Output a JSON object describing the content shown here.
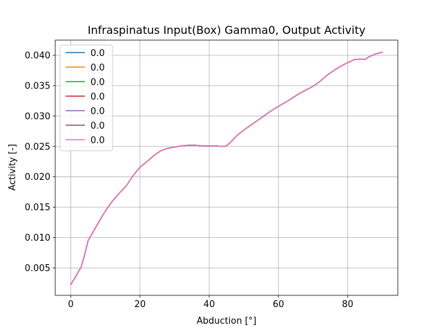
{
  "chart_data": {
    "type": "line",
    "title": "Infraspinatus Input(Box) Gamma0, Output Activity",
    "xlabel": "Abduction [°]",
    "ylabel": "Activity [-]",
    "xlim": [
      -4.5,
      94.5
    ],
    "ylim": [
      0.0005,
      0.0425
    ],
    "xticks": [
      0,
      20,
      40,
      60,
      80
    ],
    "xtick_labels": [
      "0",
      "20",
      "40",
      "60",
      "80"
    ],
    "yticks": [
      0.005,
      0.01,
      0.015,
      0.02,
      0.025,
      0.03,
      0.035,
      0.04
    ],
    "ytick_labels": [
      "0.005",
      "0.010",
      "0.015",
      "0.020",
      "0.025",
      "0.030",
      "0.035",
      "0.040"
    ],
    "grid": true,
    "legend_placement": "upper-left",
    "x": [
      0,
      1,
      2,
      3,
      4,
      5,
      6,
      8,
      10,
      12,
      14,
      16,
      18,
      20,
      22,
      24,
      26,
      28,
      30,
      32,
      34,
      36,
      38,
      40,
      42,
      44,
      45,
      46,
      48,
      50,
      52,
      55,
      58,
      60,
      63,
      66,
      68,
      70,
      72,
      74,
      76,
      78,
      80,
      82,
      84,
      85,
      86,
      88,
      90
    ],
    "series": [
      {
        "name": "0.0",
        "color": "#1f77b4",
        "values": [
          0.0023,
          0.0032,
          0.0042,
          0.0052,
          0.0072,
          0.0095,
          0.0105,
          0.0125,
          0.0144,
          0.016,
          0.0173,
          0.0185,
          0.0202,
          0.0216,
          0.0225,
          0.0235,
          0.0243,
          0.0247,
          0.0249,
          0.0251,
          0.0252,
          0.0252,
          0.0251,
          0.0251,
          0.0251,
          0.025,
          0.0251,
          0.0256,
          0.0268,
          0.0277,
          0.0285,
          0.0297,
          0.0309,
          0.0316,
          0.0326,
          0.0337,
          0.0343,
          0.0349,
          0.0357,
          0.0367,
          0.0375,
          0.0382,
          0.0388,
          0.0393,
          0.0394,
          0.0393,
          0.0397,
          0.0402,
          0.0405
        ]
      },
      {
        "name": "0.0",
        "color": "#ff7f0e",
        "values": [
          0.0023,
          0.0032,
          0.0042,
          0.0052,
          0.0072,
          0.0095,
          0.0105,
          0.0125,
          0.0144,
          0.016,
          0.0173,
          0.0185,
          0.0202,
          0.0216,
          0.0225,
          0.0235,
          0.0243,
          0.0247,
          0.0249,
          0.0251,
          0.0252,
          0.0252,
          0.0251,
          0.0251,
          0.0251,
          0.025,
          0.0251,
          0.0256,
          0.0268,
          0.0277,
          0.0285,
          0.0297,
          0.0309,
          0.0316,
          0.0326,
          0.0337,
          0.0343,
          0.0349,
          0.0357,
          0.0367,
          0.0375,
          0.0382,
          0.0388,
          0.0393,
          0.0394,
          0.0393,
          0.0397,
          0.0402,
          0.0405
        ]
      },
      {
        "name": "0.0",
        "color": "#2ca02c",
        "values": [
          0.0023,
          0.0032,
          0.0042,
          0.0052,
          0.0072,
          0.0095,
          0.0105,
          0.0125,
          0.0144,
          0.016,
          0.0173,
          0.0185,
          0.0202,
          0.0216,
          0.0225,
          0.0235,
          0.0243,
          0.0247,
          0.0249,
          0.0251,
          0.0252,
          0.0252,
          0.0251,
          0.0251,
          0.0251,
          0.025,
          0.0251,
          0.0256,
          0.0268,
          0.0277,
          0.0285,
          0.0297,
          0.0309,
          0.0316,
          0.0326,
          0.0337,
          0.0343,
          0.0349,
          0.0357,
          0.0367,
          0.0375,
          0.0382,
          0.0388,
          0.0393,
          0.0394,
          0.0393,
          0.0397,
          0.0402,
          0.0405
        ]
      },
      {
        "name": "0.0",
        "color": "#d62728",
        "values": [
          0.0023,
          0.0032,
          0.0042,
          0.0052,
          0.0072,
          0.0095,
          0.0105,
          0.0125,
          0.0144,
          0.016,
          0.0173,
          0.0185,
          0.0202,
          0.0216,
          0.0225,
          0.0235,
          0.0243,
          0.0247,
          0.0249,
          0.0251,
          0.0252,
          0.0252,
          0.0251,
          0.0251,
          0.0251,
          0.025,
          0.0251,
          0.0256,
          0.0268,
          0.0277,
          0.0285,
          0.0297,
          0.0309,
          0.0316,
          0.0326,
          0.0337,
          0.0343,
          0.0349,
          0.0357,
          0.0367,
          0.0375,
          0.0382,
          0.0388,
          0.0393,
          0.0394,
          0.0393,
          0.0397,
          0.0402,
          0.0405
        ]
      },
      {
        "name": "0.0",
        "color": "#9467bd",
        "values": [
          0.0023,
          0.0032,
          0.0042,
          0.0052,
          0.0072,
          0.0095,
          0.0105,
          0.0125,
          0.0144,
          0.016,
          0.0173,
          0.0185,
          0.0202,
          0.0216,
          0.0225,
          0.0235,
          0.0243,
          0.0247,
          0.0249,
          0.0251,
          0.0252,
          0.0252,
          0.0251,
          0.0251,
          0.0251,
          0.025,
          0.0251,
          0.0256,
          0.0268,
          0.0277,
          0.0285,
          0.0297,
          0.0309,
          0.0316,
          0.0326,
          0.0337,
          0.0343,
          0.0349,
          0.0357,
          0.0367,
          0.0375,
          0.0382,
          0.0388,
          0.0393,
          0.0394,
          0.0393,
          0.0397,
          0.0402,
          0.0405
        ]
      },
      {
        "name": "0.0",
        "color": "#8c564b",
        "values": [
          0.0023,
          0.0032,
          0.0042,
          0.0052,
          0.0072,
          0.0095,
          0.0105,
          0.0125,
          0.0144,
          0.016,
          0.0173,
          0.0185,
          0.0202,
          0.0216,
          0.0225,
          0.0235,
          0.0243,
          0.0247,
          0.0249,
          0.0251,
          0.0252,
          0.0252,
          0.0251,
          0.0251,
          0.0251,
          0.025,
          0.0251,
          0.0256,
          0.0268,
          0.0277,
          0.0285,
          0.0297,
          0.0309,
          0.0316,
          0.0326,
          0.0337,
          0.0343,
          0.0349,
          0.0357,
          0.0367,
          0.0375,
          0.0382,
          0.0388,
          0.0393,
          0.0394,
          0.0393,
          0.0397,
          0.0402,
          0.0405
        ]
      },
      {
        "name": "0.0",
        "color": "#e377c2",
        "values": [
          0.0023,
          0.0032,
          0.0042,
          0.0052,
          0.0072,
          0.0095,
          0.0105,
          0.0125,
          0.0144,
          0.016,
          0.0173,
          0.0185,
          0.0202,
          0.0216,
          0.0225,
          0.0235,
          0.0243,
          0.0247,
          0.0249,
          0.0251,
          0.0252,
          0.0252,
          0.0251,
          0.0251,
          0.0251,
          0.025,
          0.0251,
          0.0256,
          0.0268,
          0.0277,
          0.0285,
          0.0297,
          0.0309,
          0.0316,
          0.0326,
          0.0337,
          0.0343,
          0.0349,
          0.0357,
          0.0367,
          0.0375,
          0.0382,
          0.0388,
          0.0393,
          0.0394,
          0.0393,
          0.0397,
          0.0402,
          0.0405
        ]
      }
    ]
  }
}
